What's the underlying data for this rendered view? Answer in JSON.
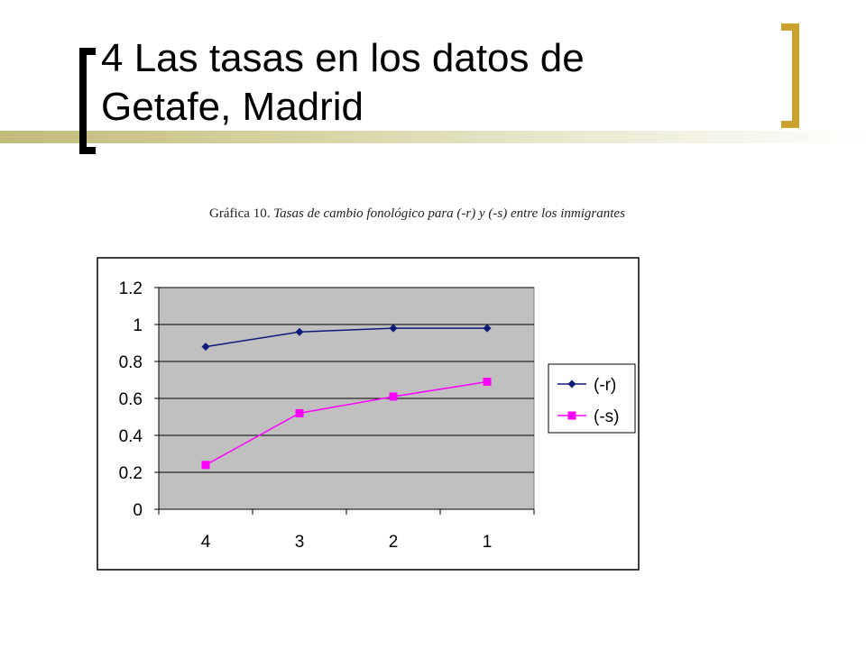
{
  "slide": {
    "title_line1": "4 Las tasas en los datos de",
    "title_line2": "Getafe, Madrid"
  },
  "caption": {
    "label": "Gráfica 10.",
    "text": "Tasas de cambio fonológico para (-r) y (-s) entre los inmigrantes"
  },
  "colors": {
    "accent_gold": "#c9a22b",
    "plot_area": "#c0c0c0",
    "series_r": "#0d1b7a",
    "series_s": "#ff00ff"
  },
  "chart_data": {
    "type": "line",
    "categories": [
      "4",
      "3",
      "2",
      "1"
    ],
    "series": [
      {
        "name": "(-r)",
        "values": [
          0.88,
          0.96,
          0.98,
          0.98
        ],
        "marker": "diamond"
      },
      {
        "name": "(-s)",
        "values": [
          0.24,
          0.52,
          0.61,
          0.69
        ],
        "marker": "square"
      }
    ],
    "yticks": [
      "0",
      "0.2",
      "0.4",
      "0.6",
      "0.8",
      "1",
      "1.2"
    ],
    "ylim": [
      0,
      1.2
    ],
    "grid": true,
    "legend_position": "right"
  }
}
